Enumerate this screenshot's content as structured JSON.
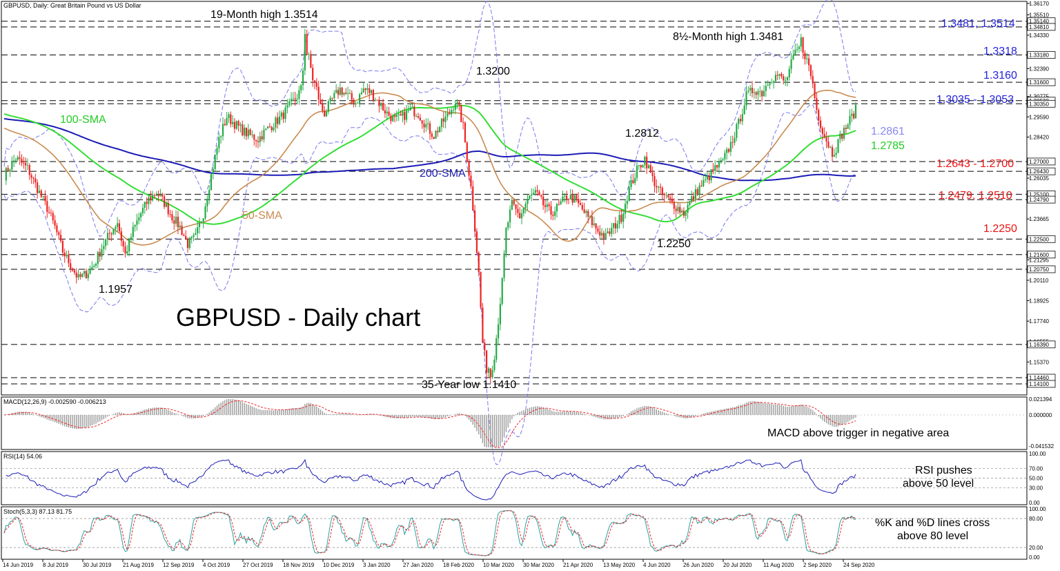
{
  "chart_data": {
    "type": "candlestick",
    "title": "GBPUSD - Daily chart",
    "header": "GBPUSD, Daily: Great Britain Pound vs US Dollar",
    "price_axis": {
      "ylim": [
        1.1325,
        1.3617
      ],
      "tick_labels": [
        "1.36170",
        "1.35510",
        "1.35140",
        "1.34810",
        "1.34330",
        "1.33180",
        "1.32390",
        "1.31600",
        "1.30775",
        "1.30530",
        "1.30350",
        "1.29590",
        "1.28420",
        "1.27000",
        "1.26430",
        "1.26035",
        "1.25100",
        "1.24790",
        "1.23665",
        "1.22500",
        "1.21600",
        "1.21295",
        "1.20750",
        "1.20110",
        "1.18925",
        "1.17740",
        "1.16555",
        "1.16390",
        "1.15370",
        "1.14460",
        "1.14100"
      ],
      "dashed_levels": [
        1.3514,
        1.3481,
        1.3318,
        1.316,
        1.3053,
        1.3035,
        1.27,
        1.2643,
        1.251,
        1.2479,
        1.225,
        1.216,
        1.2075,
        1.1639,
        1.1446,
        1.141
      ]
    },
    "x_tick_labels": [
      "14 Jun 2019",
      "8 Jul 2019",
      "30 Jul 2019",
      "21 Aug 2019",
      "12 Sep 2019",
      "4 Oct 2019",
      "27 Oct 2019",
      "18 Nov 2019",
      "10 Dec 2019",
      "3 Jan 2020",
      "27 Jan 2020",
      "18 Feb 2020",
      "10 Mar 2020",
      "30 Mar 2020",
      "21 Apr 2020",
      "13 May 2020",
      "4 Jun 2020",
      "26 Jun 2020",
      "20 Jul 2020",
      "11 Aug 2020",
      "2 Sep 2020",
      "24 Sep 2020"
    ],
    "close_path": [
      [
        0,
        1.262
      ],
      [
        6,
        1.272
      ],
      [
        12,
        1.266
      ],
      [
        18,
        1.252
      ],
      [
        22,
        1.243
      ],
      [
        26,
        1.232
      ],
      [
        30,
        1.218
      ],
      [
        34,
        1.21
      ],
      [
        38,
        1.202
      ],
      [
        42,
        1.205
      ],
      [
        46,
        1.21
      ],
      [
        50,
        1.22
      ],
      [
        54,
        1.228
      ],
      [
        58,
        1.235
      ],
      [
        60,
        1.225
      ],
      [
        62,
        1.216
      ],
      [
        66,
        1.23
      ],
      [
        70,
        1.24
      ],
      [
        74,
        1.248
      ],
      [
        78,
        1.252
      ],
      [
        82,
        1.246
      ],
      [
        86,
        1.238
      ],
      [
        90,
        1.232
      ],
      [
        94,
        1.222
      ],
      [
        98,
        1.226
      ],
      [
        102,
        1.24
      ],
      [
        106,
        1.262
      ],
      [
        110,
        1.283
      ],
      [
        114,
        1.296
      ],
      [
        118,
        1.292
      ],
      [
        122,
        1.288
      ],
      [
        126,
        1.285
      ],
      [
        130,
        1.283
      ],
      [
        134,
        1.288
      ],
      [
        138,
        1.292
      ],
      [
        142,
        1.296
      ],
      [
        146,
        1.302
      ],
      [
        150,
        1.308
      ],
      [
        152,
        1.312
      ],
      [
        154,
        1.335
      ],
      [
        156,
        1.33
      ],
      [
        158,
        1.318
      ],
      [
        160,
        1.312
      ],
      [
        162,
        1.302
      ],
      [
        164,
        1.298
      ],
      [
        168,
        1.306
      ],
      [
        172,
        1.312
      ],
      [
        176,
        1.308
      ],
      [
        180,
        1.304
      ],
      [
        184,
        1.312
      ],
      [
        188,
        1.31
      ],
      [
        192,
        1.304
      ],
      [
        196,
        1.298
      ],
      [
        200,
        1.294
      ],
      [
        204,
        1.296
      ],
      [
        208,
        1.3
      ],
      [
        212,
        1.298
      ],
      [
        216,
        1.291
      ],
      [
        220,
        1.285
      ],
      [
        224,
        1.292
      ],
      [
        228,
        1.298
      ],
      [
        231,
        1.305
      ],
      [
        233,
        1.3
      ],
      [
        235,
        1.29
      ],
      [
        237,
        1.272
      ],
      [
        239,
        1.255
      ],
      [
        241,
        1.232
      ],
      [
        243,
        1.205
      ],
      [
        245,
        1.165
      ],
      [
        247,
        1.15
      ],
      [
        249,
        1.146
      ],
      [
        251,
        1.158
      ],
      [
        253,
        1.178
      ],
      [
        255,
        1.2
      ],
      [
        257,
        1.23
      ],
      [
        260,
        1.245
      ],
      [
        264,
        1.238
      ],
      [
        268,
        1.248
      ],
      [
        272,
        1.252
      ],
      [
        276,
        1.245
      ],
      [
        280,
        1.24
      ],
      [
        284,
        1.244
      ],
      [
        288,
        1.25
      ],
      [
        292,
        1.248
      ],
      [
        296,
        1.242
      ],
      [
        300,
        1.236
      ],
      [
        304,
        1.23
      ],
      [
        308,
        1.226
      ],
      [
        312,
        1.232
      ],
      [
        316,
        1.238
      ],
      [
        320,
        1.254
      ],
      [
        324,
        1.265
      ],
      [
        328,
        1.272
      ],
      [
        332,
        1.26
      ],
      [
        336,
        1.252
      ],
      [
        340,
        1.248
      ],
      [
        344,
        1.244
      ],
      [
        348,
        1.24
      ],
      [
        352,
        1.248
      ],
      [
        356,
        1.255
      ],
      [
        360,
        1.26
      ],
      [
        364,
        1.266
      ],
      [
        368,
        1.27
      ],
      [
        372,
        1.28
      ],
      [
        376,
        1.292
      ],
      [
        380,
        1.308
      ],
      [
        384,
        1.312
      ],
      [
        388,
        1.31
      ],
      [
        392,
        1.318
      ],
      [
        396,
        1.32
      ],
      [
        400,
        1.316
      ],
      [
        404,
        1.33
      ],
      [
        408,
        1.338
      ],
      [
        410,
        1.332
      ],
      [
        412,
        1.325
      ],
      [
        414,
        1.315
      ],
      [
        416,
        1.3
      ],
      [
        418,
        1.292
      ],
      [
        420,
        1.285
      ],
      [
        422,
        1.28
      ],
      [
        424,
        1.275
      ],
      [
        426,
        1.278
      ],
      [
        428,
        1.284
      ],
      [
        430,
        1.288
      ],
      [
        432,
        1.292
      ],
      [
        434,
        1.296
      ],
      [
        436,
        1.3
      ]
    ],
    "overlays": [
      {
        "name": "50-SMA",
        "color": "#c98a4e"
      },
      {
        "name": "100-SMA",
        "color": "#33dd33"
      },
      {
        "name": "200-SMA",
        "color": "#1a1ab5"
      }
    ],
    "annotations": {
      "big_title": "GBPUSD - Daily chart",
      "high_19m": "19-Month high 1.3514",
      "high_85m": "8½-Month high 1.3481",
      "low_35y": "35-Year low 1.1410",
      "low_1957": "1.1957",
      "pk_13200": "1.3200",
      "pk_12812": "1.2812",
      "low_12250": "1.2250",
      "sma50": "50-SMA",
      "sma100": "100-SMA",
      "sma200": "200-SMA",
      "val_12861": "1.2861",
      "val_12785": "1.2785"
    },
    "levels_right": [
      {
        "text": "1.3481, 1.3514",
        "color": "#2222dd"
      },
      {
        "text": "1.3318",
        "color": "#2222dd"
      },
      {
        "text": "1.3160",
        "color": "#2222dd"
      },
      {
        "text": "1.3035 - 1.3053",
        "color": "#2222dd"
      },
      {
        "text": "1.2643 - 1.2700",
        "color": "#ee1111"
      },
      {
        "text": "1.2479, 1.2510",
        "color": "#ee1111"
      },
      {
        "text": "1.2250",
        "color": "#ee1111"
      }
    ],
    "macd": {
      "header": "MACD(12,26,9) -0.002590 -0.006213",
      "axis": [
        "0.021394",
        "0.000000",
        "-0.041532"
      ],
      "note": "MACD above trigger in negative area"
    },
    "rsi": {
      "header": "RSI(14) 54.06",
      "axis": [
        "100.00",
        "70.00",
        "50.00",
        "30.00",
        "0.00"
      ],
      "note_line1": "RSI pushes",
      "note_line2": "above 50 level"
    },
    "stoch": {
      "header": "Stoch(5,3,3) 87.13 81.75",
      "axis": [
        "100.00",
        "80.00",
        "20.00",
        "0.00"
      ],
      "note_line1": "%K and %D lines cross",
      "note_line2": "above 80 level"
    }
  }
}
